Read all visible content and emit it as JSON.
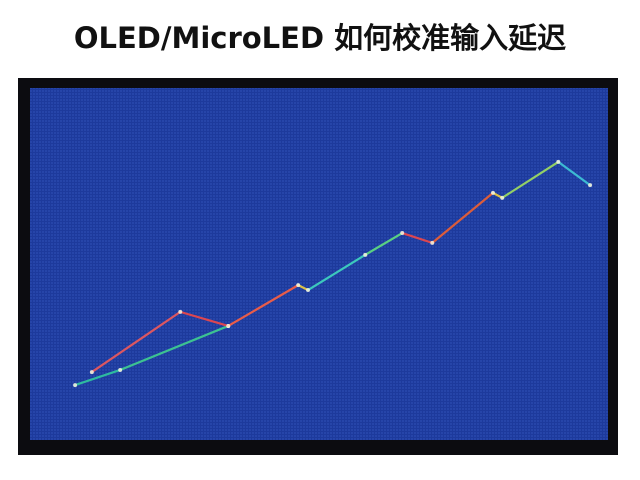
{
  "chart_data": {
    "type": "line",
    "title": "OLED/MicroLED  如何校准输入延迟",
    "xlim": [
      0,
      100
    ],
    "ylim": [
      0,
      100
    ],
    "background": "#1d3a9c",
    "series": [
      {
        "color": "#30c8a0",
        "x": [
          7.8,
          15.6,
          34.3
        ],
        "values": [
          15.6,
          19.9,
          32.4
        ],
        "segment_colors": [
          "#30c8a0",
          "#40d090"
        ]
      },
      {
        "color": "#f05050",
        "x": [
          10.7,
          26.0,
          34.3,
          46.4,
          48.1,
          58.0,
          64.4,
          69.6,
          80.1,
          81.7,
          91.4,
          96.9
        ],
        "values": [
          19.3,
          36.4,
          32.4,
          44.0,
          42.6,
          52.6,
          58.8,
          56.0,
          70.2,
          68.8,
          79.0,
          72.4
        ],
        "segment_colors": [
          "#f05a5a",
          "#f04848",
          "#ff6040",
          "#f0d040",
          "#40d8c0",
          "#60e080",
          "#f04848",
          "#f06030",
          "#f0d040",
          "#a0e060",
          "#40c8d8"
        ]
      }
    ]
  }
}
